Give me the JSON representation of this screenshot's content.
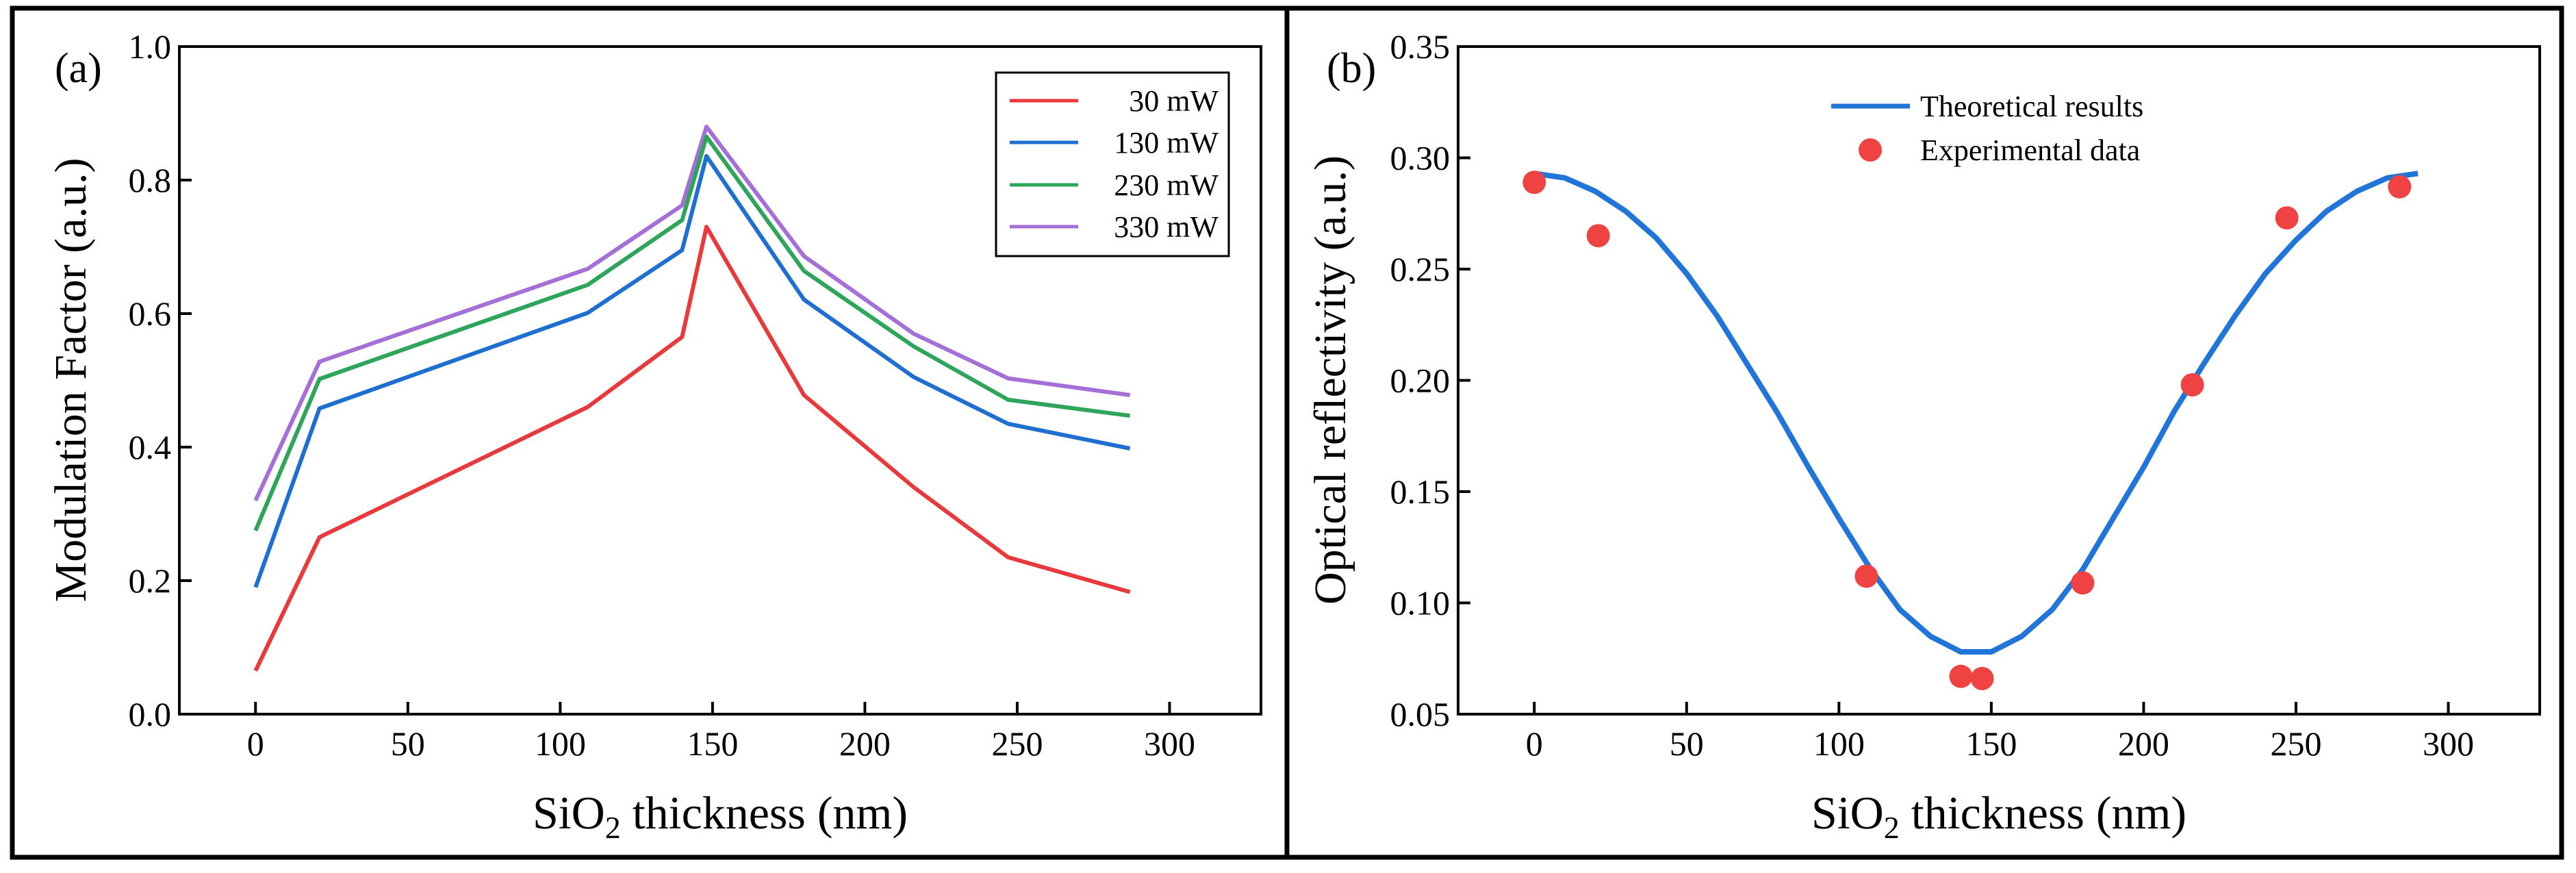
{
  "colors": {
    "series_30": "#e8393c",
    "series_130": "#1f6fd0",
    "series_230": "#2ea55a",
    "series_330": "#a46fd6",
    "theory": "#2275d8",
    "experiment": "#ef4343",
    "frame": "#000000"
  },
  "chart_data": [
    {
      "panel_label": "(a)",
      "type": "line",
      "xlabel": {
        "main": "SiO",
        "sub": "2",
        "rest": " thickness (nm)"
      },
      "ylabel": "Modulation Factor (a.u.)",
      "xlim": [
        -25,
        330
      ],
      "ylim": [
        0.0,
        1.0
      ],
      "xticks": [
        0,
        50,
        100,
        150,
        200,
        250,
        300
      ],
      "yticks": [
        "0.0",
        "0.2",
        "0.4",
        "0.6",
        "0.8",
        "1.0"
      ],
      "x": [
        0,
        21,
        109,
        140,
        148,
        180,
        216,
        247,
        287
      ],
      "series": [
        {
          "name": "30 mW",
          "color_key": "series_30",
          "values": [
            0.065,
            0.265,
            0.46,
            0.565,
            0.73,
            0.478,
            0.34,
            0.235,
            0.183
          ]
        },
        {
          "name": "130 mW",
          "color_key": "series_130",
          "values": [
            0.19,
            0.458,
            0.601,
            0.695,
            0.836,
            0.621,
            0.505,
            0.435,
            0.398
          ]
        },
        {
          "name": "230 mW",
          "color_key": "series_230",
          "values": [
            0.275,
            0.502,
            0.643,
            0.74,
            0.865,
            0.664,
            0.551,
            0.471,
            0.447
          ]
        },
        {
          "name": "330 mW",
          "color_key": "series_330",
          "values": [
            0.32,
            0.528,
            0.667,
            0.762,
            0.88,
            0.686,
            0.57,
            0.503,
            0.478
          ]
        }
      ],
      "legend_position": "top-right"
    },
    {
      "panel_label": "(b)",
      "type": "line+scatter",
      "xlabel": {
        "main": "SiO",
        "sub": "2",
        "rest": " thickness (nm)"
      },
      "ylabel": "Optical reflectivity (a.u.)",
      "xlim": [
        -25,
        330
      ],
      "ylim": [
        0.05,
        0.35
      ],
      "xticks": [
        0,
        50,
        100,
        150,
        200,
        250,
        300
      ],
      "yticks": [
        "0.05",
        "0.10",
        "0.15",
        "0.20",
        "0.25",
        "0.30",
        "0.35"
      ],
      "theory": {
        "name": "Theoretical results",
        "x": [
          0,
          10,
          20,
          30,
          40,
          50,
          60,
          70,
          80,
          90,
          100,
          110,
          120,
          130,
          140,
          150,
          160,
          170,
          180,
          190,
          200,
          210,
          220,
          230,
          240,
          250,
          260,
          270,
          280,
          290
        ],
        "y": [
          0.293,
          0.291,
          0.285,
          0.276,
          0.264,
          0.248,
          0.229,
          0.207,
          0.185,
          0.161,
          0.138,
          0.116,
          0.097,
          0.085,
          0.078,
          0.078,
          0.085,
          0.097,
          0.115,
          0.138,
          0.161,
          0.186,
          0.208,
          0.229,
          0.248,
          0.263,
          0.276,
          0.285,
          0.291,
          0.293
        ]
      },
      "experiment": {
        "name": "Experimental data",
        "x": [
          0,
          21,
          109,
          140,
          147,
          180,
          216,
          247,
          284
        ],
        "y": [
          0.289,
          0.265,
          0.112,
          0.067,
          0.066,
          0.109,
          0.198,
          0.273,
          0.287
        ]
      },
      "legend_position": "top-center"
    }
  ]
}
